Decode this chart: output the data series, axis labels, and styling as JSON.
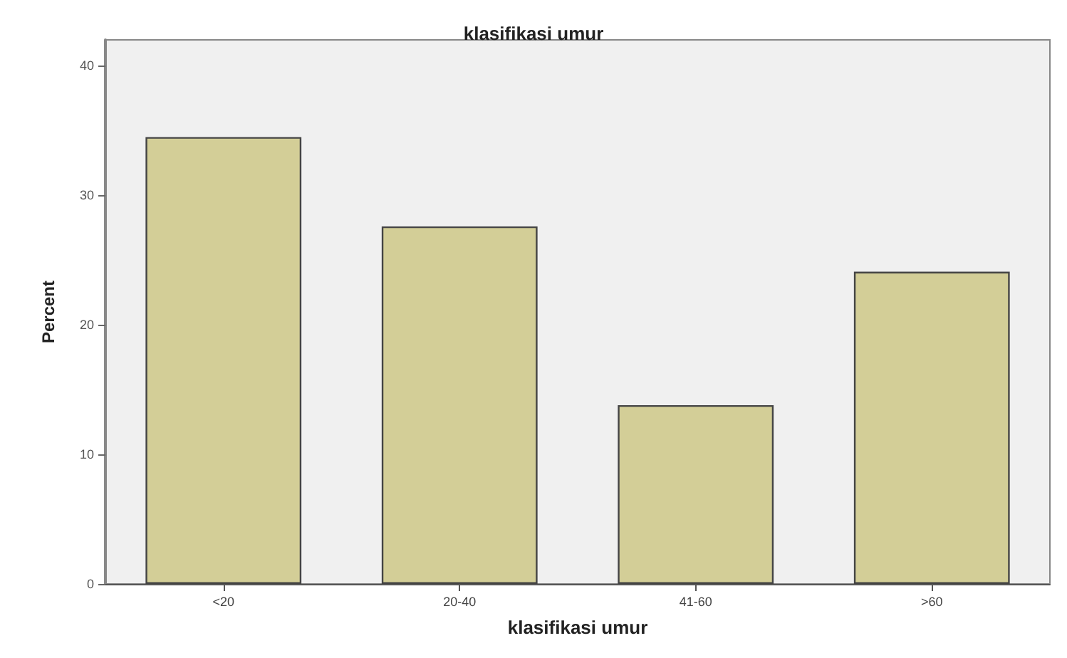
{
  "chart_data": {
    "type": "bar",
    "title": "klasifikasi umur",
    "xlabel": "klasifikasi umur",
    "ylabel": "Percent",
    "categories": [
      "<20",
      "20-40",
      "41-60",
      ">60"
    ],
    "values": [
      34.5,
      27.6,
      13.8,
      24.1
    ],
    "color": "#d3ce97",
    "ylim": [
      0,
      42
    ],
    "yticks": [
      0,
      10,
      20,
      30,
      40
    ],
    "grid": false
  }
}
